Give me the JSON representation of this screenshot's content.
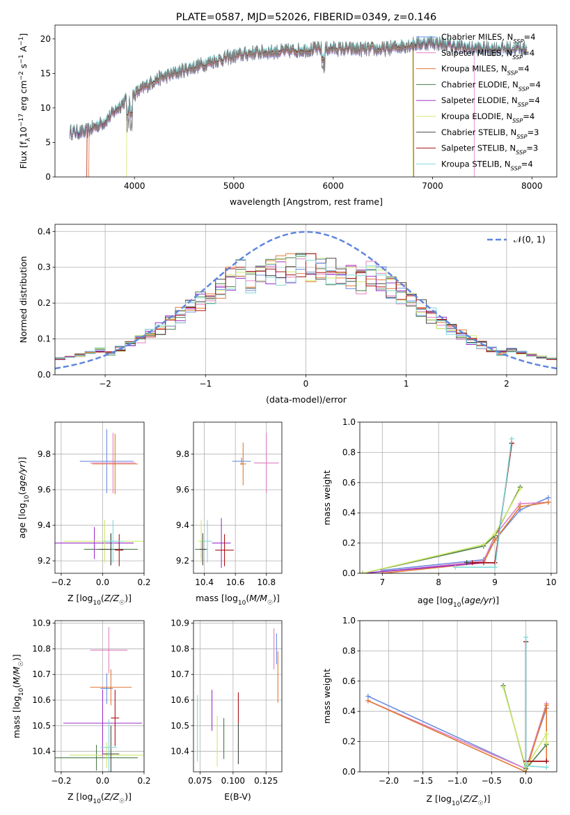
{
  "title": "PLATE=0587, MJD=52026, FIBERID=0349, z=0.146",
  "colors": {
    "Chabrier MILES": "#6b8ee0",
    "Salpeter MILES": "#e27fc0",
    "Kroupa MILES": "#e07a32",
    "Chabrier ELODIE": "#4a7a4a",
    "Salpeter ELODIE": "#9b30c8",
    "Kroupa ELODIE": "#cfe86a",
    "Chabrier STELIB": "#444444",
    "Salpeter STELIB": "#aa1111",
    "Kroupa STELIB": "#7fd8d8"
  },
  "chart_data": [
    {
      "type": "line",
      "name": "spectrum",
      "title": "PLATE=0587, MJD=52026, FIBERID=0349, z=0.146",
      "xlabel": "wavelength [Angstrom, rest frame]",
      "ylabel": "Flux [f_λ 10^-17 erg cm^-2 s^-1 A^-1]",
      "xlim": [
        3200,
        8250
      ],
      "ylim": [
        0,
        22
      ],
      "xticks": [
        4000,
        5000,
        6000,
        7000,
        8000
      ],
      "yticks": [
        0,
        5,
        10,
        15,
        20
      ],
      "legend": [
        {
          "label": "Chabrier MILES, N_SSP=4",
          "key": "Chabrier MILES"
        },
        {
          "label": "Salpeter MILES, N_SSP=4",
          "key": "Salpeter MILES"
        },
        {
          "label": "Kroupa MILES, N_SSP=4",
          "key": "Kroupa MILES"
        },
        {
          "label": "Chabrier ELODIE, N_SSP=4",
          "key": "Chabrier ELODIE"
        },
        {
          "label": "Salpeter ELODIE, N_SSP=4",
          "key": "Salpeter ELODIE"
        },
        {
          "label": "Kroupa ELODIE, N_SSP=4",
          "key": "Kroupa ELODIE"
        },
        {
          "label": "Chabrier STELIB, N_SSP=3",
          "key": "Chabrier STELIB"
        },
        {
          "label": "Salpeter STELIB, N_SSP=3",
          "key": "Salpeter STELIB"
        },
        {
          "label": "Kroupa STELIB, N_SSP=4",
          "key": "Kroupa STELIB"
        }
      ],
      "legend_placement": "right",
      "continuum": {
        "x": [
          3350,
          3500,
          3700,
          3900,
          4000,
          4200,
          4500,
          4800,
          5000,
          5200,
          5500,
          5800,
          6000,
          6200,
          6500,
          6800,
          7000,
          7200,
          7400,
          7600,
          7900
        ],
        "y": [
          6.5,
          6.5,
          8,
          11,
          12,
          14,
          15.5,
          16.8,
          17.5,
          18,
          18.2,
          18.5,
          18.6,
          18.5,
          18.5,
          19.2,
          19.5,
          19,
          18.6,
          18.6,
          18.6
        ]
      },
      "model_starts": {
        "Kroupa MILES": 3540,
        "Kroupa ELODIE": 3920,
        "Salpeter STELIB": 3520
      },
      "model_ends": {
        "Kroupa ELODIE": 6800,
        "Salpeter MILES": 7420,
        "Salpeter STELIB": 6810
      }
    },
    {
      "type": "histogram",
      "name": "residuals",
      "xlabel": "(data-model)/error",
      "ylabel": "Normed distribution",
      "xlim": [
        -2.5,
        2.5
      ],
      "ylim": [
        0,
        0.42
      ],
      "xticks": [
        -2,
        -1,
        0,
        1,
        2
      ],
      "yticks": [
        0.0,
        0.1,
        0.2,
        0.3,
        0.4
      ],
      "grid": true,
      "legend": [
        {
          "label": "𝒩(0, 1)",
          "color": "#5f86de",
          "style": "dashed"
        }
      ],
      "legend_placement": "top-right",
      "bins": {
        "start": -2.5,
        "width": 0.1
      }
    },
    {
      "type": "scatter",
      "name": "age-vs-metallicity",
      "xlabel": "Z [log10(Z/Z☉)]",
      "ylabel": "age  [log10(age/yr)]",
      "xlim": [
        -0.23,
        0.2
      ],
      "ylim": [
        9.13,
        9.98
      ],
      "xticks": [
        -0.2,
        0.0,
        0.2
      ],
      "yticks": [
        9.2,
        9.4,
        9.6,
        9.8
      ],
      "grid": true,
      "points": [
        {
          "key": "Chabrier MILES",
          "x": 0.02,
          "y": 9.76,
          "xerr": 0.13,
          "yerr": 0.18
        },
        {
          "key": "Salpeter MILES",
          "x": 0.05,
          "y": 9.75,
          "xerr": 0.11,
          "yerr": 0.17
        },
        {
          "key": "Kroupa MILES",
          "x": 0.06,
          "y": 9.745,
          "xerr": 0.11,
          "yerr": 0.17
        },
        {
          "key": "Chabrier ELODIE",
          "x": 0.04,
          "y": 9.265,
          "xerr": 0.13,
          "yerr": 0.09
        },
        {
          "key": "Salpeter ELODIE",
          "x": -0.04,
          "y": 9.3,
          "xerr": 0.19,
          "yerr": 0.09
        },
        {
          "key": "Kroupa ELODIE",
          "x": 0.01,
          "y": 9.31,
          "xerr": 0.2,
          "yerr": 0.12
        },
        {
          "key": "Chabrier STELIB",
          "x": 0.04,
          "y": 9.265,
          "xerr": 0.06,
          "yerr": 0.09
        },
        {
          "key": "Salpeter STELIB",
          "x": 0.08,
          "y": 9.26,
          "xerr": 0.02,
          "yerr": 0.09
        },
        {
          "key": "Kroupa STELIB",
          "x": 0.05,
          "y": 9.31,
          "xerr": 0.05,
          "yerr": 0.12
        }
      ]
    },
    {
      "type": "scatter",
      "name": "age-vs-mass",
      "xlabel": "mass [log10(M/M☉)]",
      "ylabel": "",
      "xlim": [
        10.33,
        10.9
      ],
      "ylim": [
        9.13,
        9.98
      ],
      "xticks": [
        10.4,
        10.6,
        10.8
      ],
      "yticks": [
        9.2,
        9.4,
        9.6,
        9.8
      ],
      "grid": true,
      "points": [
        {
          "key": "Chabrier MILES",
          "x": 10.64,
          "y": 9.76,
          "xerr": 0.06,
          "yerr": 0.02
        },
        {
          "key": "Salpeter MILES",
          "x": 10.8,
          "y": 9.75,
          "xerr": 0.08,
          "yerr": 0.17
        },
        {
          "key": "Kroupa MILES",
          "x": 10.65,
          "y": 9.745,
          "xerr": 0.02,
          "yerr": 0.12
        },
        {
          "key": "Chabrier ELODIE",
          "x": 10.38,
          "y": 9.265,
          "xerr": 0.04,
          "yerr": 0.05
        },
        {
          "key": "Salpeter ELODIE",
          "x": 10.51,
          "y": 9.3,
          "xerr": 0.06,
          "yerr": 0.14
        },
        {
          "key": "Kroupa ELODIE",
          "x": 10.38,
          "y": 9.31,
          "xerr": 0.02,
          "yerr": 0.12
        },
        {
          "key": "Chabrier STELIB",
          "x": 10.39,
          "y": 9.265,
          "xerr": 0.02,
          "yerr": 0.09
        },
        {
          "key": "Salpeter STELIB",
          "x": 10.53,
          "y": 9.26,
          "xerr": 0.06,
          "yerr": 0.09
        },
        {
          "key": "Kroupa STELIB",
          "x": 10.42,
          "y": 9.31,
          "xerr": 0.03,
          "yerr": 0.12
        }
      ]
    },
    {
      "type": "line",
      "name": "mass-weight-vs-age",
      "xlabel": "age  [log10(age/yr)]",
      "ylabel": "mass weight",
      "xlim": [
        6.6,
        10.1
      ],
      "ylim": [
        0,
        1
      ],
      "xticks": [
        7,
        8,
        9,
        10
      ],
      "yticks": [
        0.0,
        0.2,
        0.4,
        0.6,
        0.8,
        1.0
      ],
      "grid": true,
      "series": [
        {
          "key": "Chabrier MILES",
          "x": [
            7.0,
            8.8,
            9.0,
            9.45,
            9.95
          ],
          "y": [
            0.02,
            0.09,
            0.22,
            0.42,
            0.5
          ]
        },
        {
          "key": "Salpeter MILES",
          "x": [
            7.0,
            8.8,
            9.0,
            9.45,
            9.95
          ],
          "y": [
            0.01,
            0.08,
            0.25,
            0.46,
            0.47
          ]
        },
        {
          "key": "Kroupa MILES",
          "x": [
            7.0,
            8.8,
            9.0,
            9.45,
            9.95
          ],
          "y": [
            0.0,
            0.07,
            0.22,
            0.44,
            0.47
          ]
        },
        {
          "key": "Chabrier ELODIE",
          "x": [
            6.65,
            8.8,
            9.0,
            9.45
          ],
          "y": [
            0.0,
            0.18,
            0.25,
            0.57
          ]
        },
        {
          "key": "Salpeter ELODIE",
          "x": [
            6.65,
            8.8,
            9.0,
            9.3
          ],
          "y": [
            0.0,
            0.07,
            0.07,
            0.86
          ]
        },
        {
          "key": "Kroupa ELODIE",
          "x": [
            6.65,
            8.8,
            9.0,
            9.45
          ],
          "y": [
            0.0,
            0.19,
            0.26,
            0.56
          ]
        },
        {
          "key": "Chabrier STELIB",
          "x": [
            8.5,
            9.0,
            9.3
          ],
          "y": [
            0.07,
            0.07,
            0.86
          ]
        },
        {
          "key": "Salpeter STELIB",
          "x": [
            8.6,
            9.0,
            9.3
          ],
          "y": [
            0.07,
            0.07,
            0.86
          ]
        },
        {
          "key": "Kroupa STELIB",
          "x": [
            8.3,
            9.0,
            9.3
          ],
          "y": [
            0.04,
            0.04,
            0.89
          ]
        }
      ]
    },
    {
      "type": "scatter",
      "name": "mass-vs-metallicity",
      "xlabel": "Z [log10(Z/Z☉)]",
      "ylabel": "mass [log10(M/M☉)]",
      "xlim": [
        -0.23,
        0.2
      ],
      "ylim": [
        10.32,
        10.91
      ],
      "xticks": [
        -0.2,
        0.0,
        0.2
      ],
      "yticks": [
        10.4,
        10.5,
        10.6,
        10.7,
        10.8,
        10.9
      ],
      "grid": true,
      "points": [
        {
          "key": "Chabrier MILES",
          "x": 0.02,
          "y": 10.645,
          "xerr": 0.03,
          "yerr": 0.06
        },
        {
          "key": "Salpeter MILES",
          "x": 0.03,
          "y": 10.795,
          "xerr": 0.09,
          "yerr": 0.09
        },
        {
          "key": "Kroupa MILES",
          "x": 0.04,
          "y": 10.65,
          "xerr": 0.1,
          "yerr": 0.07
        },
        {
          "key": "Chabrier ELODIE",
          "x": -0.03,
          "y": 10.375,
          "xerr": 0.2,
          "yerr": 0.05
        },
        {
          "key": "Salpeter ELODIE",
          "x": 0.0,
          "y": 10.51,
          "xerr": 0.19,
          "yerr": 0.13
        },
        {
          "key": "Kroupa ELODIE",
          "x": 0.02,
          "y": 10.385,
          "xerr": 0.18,
          "yerr": 0.05
        },
        {
          "key": "Chabrier STELIB",
          "x": 0.04,
          "y": 10.39,
          "xerr": 0.04,
          "yerr": 0.11
        },
        {
          "key": "Salpeter STELIB",
          "x": 0.06,
          "y": 10.53,
          "xerr": 0.02,
          "yerr": 0.11
        },
        {
          "key": "Kroupa STELIB",
          "x": 0.03,
          "y": 10.415,
          "xerr": 0.04,
          "yerr": 0.11
        }
      ]
    },
    {
      "type": "scatter",
      "name": "mass-vs-ebv",
      "xlabel": "E(B-V)",
      "ylabel": "",
      "xlim": [
        0.07,
        0.137
      ],
      "ylim": [
        10.32,
        10.91
      ],
      "xticks": [
        0.075,
        0.1,
        0.125
      ],
      "yticks": [
        10.4,
        10.5,
        10.6,
        10.7,
        10.8,
        10.9
      ],
      "grid": true,
      "points": [
        {
          "key": "Chabrier MILES",
          "x": 0.133,
          "y": 10.8,
          "yerr": 0.06
        },
        {
          "key": "Salpeter MILES",
          "x": 0.131,
          "y": 10.8,
          "yerr": 0.08
        },
        {
          "key": "Kroupa MILES",
          "x": 0.134,
          "y": 10.69,
          "yerr": 0.1
        },
        {
          "key": "Chabrier ELODIE",
          "x": 0.093,
          "y": 10.45,
          "yerr": 0.08
        },
        {
          "key": "Salpeter ELODIE",
          "x": 0.084,
          "y": 10.56,
          "yerr": 0.08
        },
        {
          "key": "Kroupa ELODIE",
          "x": 0.088,
          "y": 10.44,
          "yerr": 0.1
        },
        {
          "key": "Chabrier STELIB",
          "x": 0.104,
          "y": 10.43,
          "yerr": 0.08
        },
        {
          "key": "Salpeter STELIB",
          "x": 0.104,
          "y": 10.57,
          "yerr": 0.06
        },
        {
          "key": "Kroupa STELIB",
          "x": 0.073,
          "y": 10.49,
          "yerr": 0.13
        }
      ]
    },
    {
      "type": "line",
      "name": "mass-weight-vs-metallicity",
      "xlabel": "Z [log10(Z/Z☉)]",
      "ylabel": "mass weight",
      "xlim": [
        -2.42,
        0.45
      ],
      "ylim": [
        0,
        1
      ],
      "xticks": [
        -2.0,
        -1.5,
        -1.0,
        -0.5,
        0.0
      ],
      "yticks": [
        0.0,
        0.2,
        0.4,
        0.6,
        0.8,
        1.0
      ],
      "grid": true,
      "series": [
        {
          "key": "Chabrier MILES",
          "x": [
            -2.3,
            0.0,
            0.3
          ],
          "y": [
            0.5,
            0.02,
            0.42
          ]
        },
        {
          "key": "Salpeter MILES",
          "x": [
            -2.3,
            0.0,
            0.3
          ],
          "y": [
            0.47,
            0.02,
            0.45
          ]
        },
        {
          "key": "Kroupa MILES",
          "x": [
            -2.3,
            0.0,
            0.3,
            0.3
          ],
          "y": [
            0.47,
            0.0,
            0.44,
            0.07
          ]
        },
        {
          "key": "Chabrier ELODIE",
          "x": [
            -0.33,
            0.0,
            0.3
          ],
          "y": [
            0.57,
            0.02,
            0.18
          ]
        },
        {
          "key": "Salpeter ELODIE",
          "x": [
            0.0,
            0.0,
            0.3
          ],
          "y": [
            0.86,
            0.07,
            0.07
          ]
        },
        {
          "key": "Kroupa ELODIE",
          "x": [
            -0.33,
            0.0,
            0.3,
            0.3
          ],
          "y": [
            0.56,
            0.03,
            0.25,
            0.19
          ]
        },
        {
          "key": "Chabrier STELIB",
          "x": [
            0.0,
            0.0,
            0.3
          ],
          "y": [
            0.86,
            0.07,
            0.07
          ]
        },
        {
          "key": "Salpeter STELIB",
          "x": [
            0.0,
            0.0,
            0.3
          ],
          "y": [
            0.86,
            0.07,
            0.07
          ]
        },
        {
          "key": "Kroupa STELIB",
          "x": [
            0.0,
            0.0,
            0.3
          ],
          "y": [
            0.89,
            0.04,
            0.03
          ]
        }
      ]
    }
  ]
}
